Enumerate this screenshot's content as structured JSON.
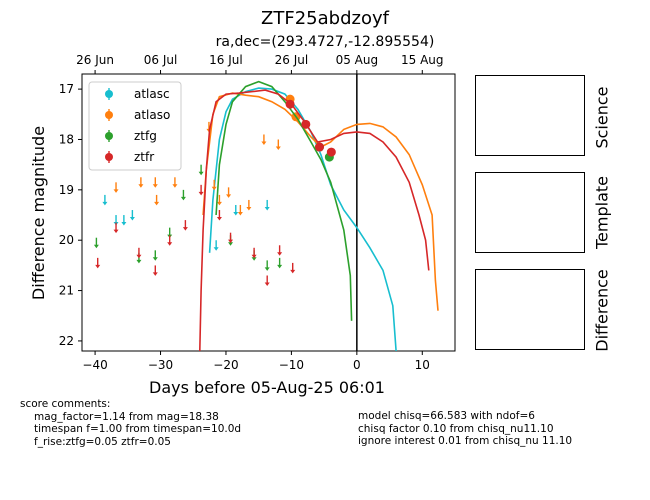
{
  "figure": {
    "title": "ZTF25abdzoyf",
    "subtitle": "ra,dec=(293.4727,-12.895554)"
  },
  "panels": {
    "science_label": "Science",
    "template_label": "Template",
    "difference_label": "Difference"
  },
  "score_comments": {
    "header": "score comments:",
    "lines": [
      "mag_factor=1.14 from mag=18.38",
      "timespan f=1.00 from timespan=10.0d",
      "f_rise:ztfg=0.05 ztfr=0.05"
    ]
  },
  "model_comments": {
    "lines": [
      "model chisq=66.583 with ndof=6",
      "chisq factor 0.10 from chisq_nu11.10",
      "ignore interest 0.01 from chisq_nu 11.10"
    ]
  },
  "chart_data": {
    "type": "scatter",
    "xlabel": "Days before 05-Aug-25 06:01",
    "ylabel": "Difference magnitude",
    "xlim": [
      -42,
      15
    ],
    "ylim": [
      22.2,
      16.7
    ],
    "y_inverted": true,
    "x_ticks": [
      -40,
      -30,
      -20,
      -10,
      0,
      10
    ],
    "y_ticks": [
      17,
      18,
      19,
      20,
      21,
      22
    ],
    "top_axis_ticks": [
      {
        "label": "26 Jun",
        "x": -40
      },
      {
        "label": "06 Jul",
        "x": -30
      },
      {
        "label": "16 Jul",
        "x": -20
      },
      {
        "label": "26 Jul",
        "x": -10
      },
      {
        "label": "05 Aug",
        "x": 0
      },
      {
        "label": "15 Aug",
        "x": 10
      }
    ],
    "vertical_line_x": 0,
    "legend": {
      "placement": "top-left"
    },
    "series": [
      {
        "name": "atlasc",
        "color": "#17becf",
        "detections": [],
        "upper_limits": [
          [
            -38.5,
            19.2
          ],
          [
            -36.8,
            19.6
          ],
          [
            -35.6,
            19.6
          ],
          [
            -34.3,
            19.5
          ],
          [
            -21.5,
            20.1
          ],
          [
            -18.5,
            19.4
          ],
          [
            -13.7,
            19.3
          ]
        ],
        "model": [
          [
            -22.5,
            20.25
          ],
          [
            -22.0,
            19.2
          ],
          [
            -21.0,
            18.0
          ],
          [
            -20.0,
            17.45
          ],
          [
            -19.0,
            17.2
          ],
          [
            -17.0,
            17.05
          ],
          [
            -15.0,
            16.98
          ],
          [
            -13.0,
            17.0
          ],
          [
            -11.0,
            17.1
          ],
          [
            -9.0,
            17.4
          ],
          [
            -7.0,
            17.85
          ],
          [
            -5.5,
            18.3
          ],
          [
            -4.0,
            18.9
          ],
          [
            -2.0,
            19.4
          ],
          [
            0.0,
            19.75
          ],
          [
            2.0,
            20.15
          ],
          [
            4.0,
            20.6
          ],
          [
            5.5,
            21.3
          ],
          [
            6.0,
            22.2
          ]
        ]
      },
      {
        "name": "atlaso",
        "color": "#ff7f0e",
        "detections": [
          [
            -10.2,
            17.2
          ],
          [
            -9.3,
            17.55
          ]
        ],
        "upper_limits": [
          [
            -36.8,
            18.95
          ],
          [
            -33.0,
            18.85
          ],
          [
            -30.8,
            18.85
          ],
          [
            -30.6,
            19.2
          ],
          [
            -27.8,
            18.85
          ],
          [
            -22.6,
            17.75
          ],
          [
            -21.8,
            18.9
          ],
          [
            -21.0,
            19.2
          ],
          [
            -19.6,
            19.05
          ],
          [
            -17.8,
            19.4
          ],
          [
            -16.5,
            19.3
          ],
          [
            -14.2,
            18.0
          ],
          [
            -12.0,
            18.1
          ]
        ],
        "model": [
          [
            -23.5,
            19.5
          ],
          [
            -23.0,
            18.6
          ],
          [
            -22.0,
            17.5
          ],
          [
            -21.0,
            17.15
          ],
          [
            -19.0,
            17.08
          ],
          [
            -17.0,
            17.12
          ],
          [
            -15.0,
            17.15
          ],
          [
            -13.0,
            17.25
          ],
          [
            -11.0,
            17.4
          ],
          [
            -9.0,
            17.65
          ],
          [
            -7.0,
            17.95
          ],
          [
            -5.5,
            18.15
          ],
          [
            -4.0,
            18.05
          ],
          [
            -2.0,
            17.8
          ],
          [
            0.0,
            17.7
          ],
          [
            2.0,
            17.68
          ],
          [
            4.0,
            17.75
          ],
          [
            6.0,
            17.95
          ],
          [
            8.0,
            18.3
          ],
          [
            10.0,
            18.9
          ],
          [
            11.5,
            19.5
          ],
          [
            12.0,
            20.8
          ],
          [
            12.4,
            21.4
          ]
        ]
      },
      {
        "name": "ztfg",
        "color": "#2ca02c",
        "detections": [
          [
            -5.7,
            18.15
          ],
          [
            -4.2,
            18.35
          ]
        ],
        "upper_limits": [
          [
            -39.8,
            20.05
          ],
          [
            -33.3,
            20.35
          ],
          [
            -30.8,
            20.3
          ],
          [
            -28.6,
            19.85
          ],
          [
            -26.5,
            19.1
          ],
          [
            -23.8,
            18.6
          ],
          [
            -19.3,
            20.0
          ],
          [
            -15.7,
            20.3
          ],
          [
            -13.7,
            20.5
          ],
          [
            -11.8,
            20.45
          ]
        ],
        "model": [
          [
            -21.5,
            19.5
          ],
          [
            -21.0,
            18.5
          ],
          [
            -20.0,
            17.7
          ],
          [
            -19.0,
            17.25
          ],
          [
            -17.0,
            16.95
          ],
          [
            -15.0,
            16.85
          ],
          [
            -13.0,
            16.95
          ],
          [
            -11.0,
            17.25
          ],
          [
            -9.0,
            17.6
          ],
          [
            -7.0,
            18.05
          ],
          [
            -5.5,
            18.4
          ],
          [
            -4.0,
            18.85
          ],
          [
            -2.0,
            19.8
          ],
          [
            -1.0,
            20.7
          ],
          [
            -0.8,
            21.6
          ]
        ]
      },
      {
        "name": "ztfr",
        "color": "#d62728",
        "detections": [
          [
            -10.2,
            17.3
          ],
          [
            -7.8,
            17.7
          ],
          [
            -5.7,
            18.15
          ],
          [
            -3.9,
            18.25
          ]
        ],
        "upper_limits": [
          [
            -39.6,
            20.45
          ],
          [
            -36.8,
            19.75
          ],
          [
            -33.3,
            20.25
          ],
          [
            -30.8,
            20.6
          ],
          [
            -28.6,
            20.0
          ],
          [
            -26.2,
            19.7
          ],
          [
            -23.8,
            19.0
          ],
          [
            -21.0,
            19.5
          ],
          [
            -19.3,
            19.95
          ],
          [
            -15.7,
            20.25
          ],
          [
            -13.7,
            20.8
          ],
          [
            -11.8,
            20.2
          ],
          [
            -9.8,
            20.55
          ]
        ],
        "model": [
          [
            -24.0,
            22.2
          ],
          [
            -23.8,
            21.0
          ],
          [
            -23.5,
            19.8
          ],
          [
            -23.0,
            18.6
          ],
          [
            -22.5,
            17.8
          ],
          [
            -21.5,
            17.25
          ],
          [
            -20.0,
            17.1
          ],
          [
            -18.0,
            17.08
          ],
          [
            -16.0,
            17.05
          ],
          [
            -14.0,
            17.02
          ],
          [
            -12.0,
            17.1
          ],
          [
            -10.0,
            17.3
          ],
          [
            -8.0,
            17.65
          ],
          [
            -6.0,
            18.05
          ],
          [
            -4.0,
            18.0
          ],
          [
            -2.0,
            17.88
          ],
          [
            0.0,
            17.85
          ],
          [
            2.0,
            17.88
          ],
          [
            4.0,
            18.05
          ],
          [
            6.0,
            18.35
          ],
          [
            8.0,
            18.85
          ],
          [
            9.5,
            19.5
          ],
          [
            10.5,
            20.0
          ],
          [
            11.0,
            20.6
          ]
        ]
      }
    ]
  }
}
